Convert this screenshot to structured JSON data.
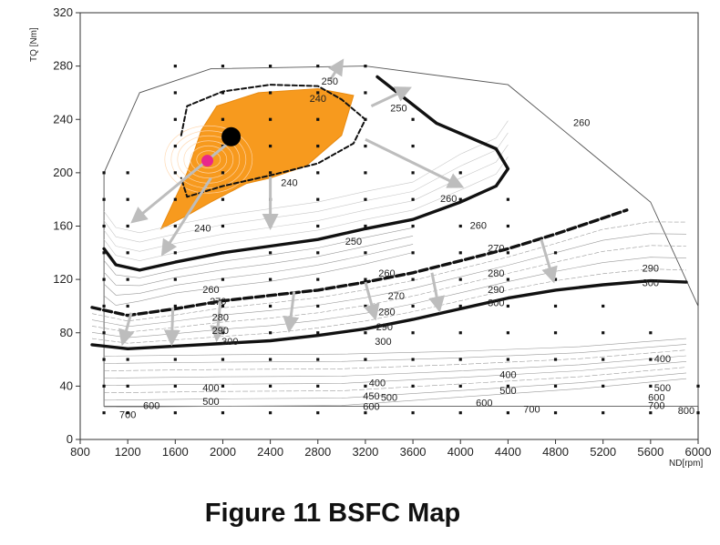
{
  "caption": "Figure 11 BSFC Map",
  "chart_data": {
    "type": "contour",
    "xlabel": "ND[rpm]",
    "ylabel": "TQ [Nm]",
    "xlim": [
      800,
      6000
    ],
    "ylim": [
      0,
      320
    ],
    "x_ticks": [
      800,
      1200,
      1600,
      2000,
      2400,
      2800,
      3200,
      3600,
      4000,
      4400,
      4800,
      5200,
      5600,
      6000
    ],
    "y_ticks": [
      0,
      40,
      80,
      120,
      160,
      200,
      240,
      280,
      320
    ],
    "grid": false,
    "colors": {
      "highlight_region": "#f79a1e",
      "contours": "#9a9a9a",
      "boundary": "#111111",
      "arrows": "#bdbdbd",
      "marker_black": "#000000",
      "marker_magenta": "#e8278c"
    },
    "boundary": [
      [
        1000,
        158
      ],
      [
        1000,
        200
      ],
      [
        1300,
        260
      ],
      [
        1900,
        278
      ],
      [
        3200,
        280
      ],
      [
        4400,
        266
      ],
      [
        5600,
        178
      ],
      [
        6000,
        100
      ],
      [
        6000,
        25
      ],
      [
        1000,
        25
      ],
      [
        1000,
        158
      ]
    ],
    "highlight_region": [
      [
        1480,
        158
      ],
      [
        1700,
        200
      ],
      [
        1820,
        232
      ],
      [
        1950,
        250
      ],
      [
        2300,
        260
      ],
      [
        2800,
        263
      ],
      [
        3100,
        258
      ],
      [
        3000,
        228
      ],
      [
        2700,
        205
      ],
      [
        2400,
        196
      ],
      [
        2200,
        192
      ],
      [
        1900,
        178
      ],
      [
        1700,
        168
      ]
    ],
    "thick_lines": [
      {
        "style": "solid",
        "points": [
          [
            1000,
            143
          ],
          [
            1100,
            131
          ],
          [
            1300,
            127
          ],
          [
            1600,
            133
          ],
          [
            2000,
            140
          ],
          [
            2400,
            145
          ],
          [
            2800,
            150
          ],
          [
            3200,
            158
          ],
          [
            3600,
            165
          ],
          [
            4000,
            178
          ],
          [
            4300,
            190
          ],
          [
            4400,
            203
          ],
          [
            4300,
            218
          ],
          [
            3800,
            237
          ],
          [
            3500,
            258
          ],
          [
            3300,
            272
          ]
        ]
      },
      {
        "style": "dashed",
        "points": [
          [
            900,
            99
          ],
          [
            1200,
            93
          ],
          [
            1600,
            98
          ],
          [
            2000,
            104
          ],
          [
            2400,
            108
          ],
          [
            2800,
            112
          ],
          [
            3200,
            118
          ],
          [
            3600,
            125
          ],
          [
            4000,
            134
          ],
          [
            4400,
            143
          ],
          [
            4800,
            154
          ],
          [
            5200,
            166
          ],
          [
            5400,
            172
          ]
        ]
      },
      {
        "style": "solid",
        "points": [
          [
            900,
            71
          ],
          [
            1200,
            68
          ],
          [
            1600,
            70
          ],
          [
            2000,
            72
          ],
          [
            2400,
            74
          ],
          [
            2800,
            78
          ],
          [
            3200,
            83
          ],
          [
            3600,
            90
          ],
          [
            4000,
            98
          ],
          [
            4400,
            106
          ],
          [
            4800,
            112
          ],
          [
            5200,
            116
          ],
          [
            5600,
            119
          ],
          [
            5900,
            118
          ]
        ]
      },
      {
        "style": "dashed",
        "points": [
          [
            1650,
            228
          ],
          [
            1700,
            250
          ],
          [
            2000,
            261
          ],
          [
            2400,
            266
          ],
          [
            2800,
            265
          ],
          [
            3000,
            255
          ],
          [
            3200,
            240
          ],
          [
            3100,
            222
          ],
          [
            2800,
            207
          ],
          [
            2400,
            198
          ],
          [
            2000,
            190
          ],
          [
            1700,
            182
          ],
          [
            1650,
            196
          ]
        ]
      }
    ],
    "contour_labels": [
      {
        "x": 2900,
        "y": 268,
        "text": "250"
      },
      {
        "x": 2800,
        "y": 255,
        "text": "240"
      },
      {
        "x": 3480,
        "y": 248,
        "text": "250"
      },
      {
        "x": 5020,
        "y": 237,
        "text": "260"
      },
      {
        "x": 3900,
        "y": 180,
        "text": "260"
      },
      {
        "x": 4150,
        "y": 160,
        "text": "260"
      },
      {
        "x": 2560,
        "y": 192,
        "text": "240"
      },
      {
        "x": 1830,
        "y": 158,
        "text": "240"
      },
      {
        "x": 3100,
        "y": 148,
        "text": "250"
      },
      {
        "x": 3380,
        "y": 124,
        "text": "260"
      },
      {
        "x": 4300,
        "y": 143,
        "text": "270"
      },
      {
        "x": 4300,
        "y": 124,
        "text": "280"
      },
      {
        "x": 4300,
        "y": 112,
        "text": "290"
      },
      {
        "x": 4300,
        "y": 102,
        "text": "300"
      },
      {
        "x": 5600,
        "y": 128,
        "text": "290"
      },
      {
        "x": 5600,
        "y": 117,
        "text": "300"
      },
      {
        "x": 1900,
        "y": 112,
        "text": "260"
      },
      {
        "x": 1960,
        "y": 103,
        "text": "270"
      },
      {
        "x": 1980,
        "y": 91,
        "text": "280"
      },
      {
        "x": 1980,
        "y": 81,
        "text": "290"
      },
      {
        "x": 2060,
        "y": 73,
        "text": "300"
      },
      {
        "x": 3460,
        "y": 107,
        "text": "270"
      },
      {
        "x": 3380,
        "y": 95,
        "text": "280"
      },
      {
        "x": 3360,
        "y": 84,
        "text": "290"
      },
      {
        "x": 3350,
        "y": 73,
        "text": "300"
      },
      {
        "x": 5700,
        "y": 60,
        "text": "400"
      },
      {
        "x": 4400,
        "y": 48,
        "text": "400"
      },
      {
        "x": 4400,
        "y": 36,
        "text": "500"
      },
      {
        "x": 4200,
        "y": 27,
        "text": "600"
      },
      {
        "x": 4600,
        "y": 22,
        "text": "700"
      },
      {
        "x": 5700,
        "y": 38,
        "text": "500"
      },
      {
        "x": 5650,
        "y": 31,
        "text": "600"
      },
      {
        "x": 5650,
        "y": 25,
        "text": "700"
      },
      {
        "x": 5900,
        "y": 21,
        "text": "800"
      },
      {
        "x": 1900,
        "y": 38,
        "text": "400"
      },
      {
        "x": 1900,
        "y": 28,
        "text": "500"
      },
      {
        "x": 1400,
        "y": 25,
        "text": "600"
      },
      {
        "x": 1200,
        "y": 18,
        "text": "700"
      },
      {
        "x": 3300,
        "y": 42,
        "text": "400"
      },
      {
        "x": 3400,
        "y": 31,
        "text": "500"
      },
      {
        "x": 3250,
        "y": 24,
        "text": "600"
      },
      {
        "x": 3250,
        "y": 32,
        "text": "450"
      }
    ],
    "markers": [
      {
        "x": 2070,
        "y": 227,
        "color": "#000000",
        "size": "large"
      },
      {
        "x": 1870,
        "y": 209,
        "color": "#e8278c",
        "size": "small"
      }
    ],
    "arrows": [
      {
        "from": [
          2070,
          224
        ],
        "to": [
          1250,
          164
        ]
      },
      {
        "from": [
          1900,
          196
        ],
        "to": [
          1500,
          140
        ]
      },
      {
        "from": [
          2400,
          197
        ],
        "to": [
          2400,
          160
        ]
      },
      {
        "from": [
          2900,
          269
        ],
        "to": [
          3000,
          283
        ]
      },
      {
        "from": [
          3250,
          250
        ],
        "to": [
          3560,
          263
        ]
      },
      {
        "from": [
          3200,
          225
        ],
        "to": [
          4000,
          190
        ]
      },
      {
        "from": [
          1230,
          95
        ],
        "to": [
          1160,
          73
        ]
      },
      {
        "from": [
          1580,
          99
        ],
        "to": [
          1570,
          73
        ]
      },
      {
        "from": [
          1980,
          104
        ],
        "to": [
          1950,
          76
        ]
      },
      {
        "from": [
          2600,
          111
        ],
        "to": [
          2560,
          83
        ]
      },
      {
        "from": [
          3200,
          118
        ],
        "to": [
          3280,
          92
        ]
      },
      {
        "from": [
          3760,
          125
        ],
        "to": [
          3820,
          98
        ]
      },
      {
        "from": [
          4680,
          150
        ],
        "to": [
          4780,
          120
        ]
      }
    ]
  }
}
